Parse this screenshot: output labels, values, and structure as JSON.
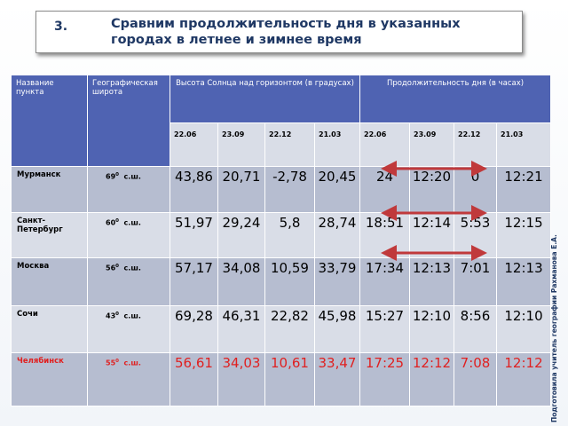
{
  "title": {
    "number": "3.",
    "text": "Сравним продолжительность дня в указанных городах в летнее и зимнее время"
  },
  "credit": "Подготовила учитель географии Рахманова Е.А.",
  "headers": {
    "city": "Название пункта",
    "latitude": "Географическая широта",
    "sun_height": "Высота Солнца над горизонтом (в градусах)",
    "day_length": "Продолжительность дня (в часах)"
  },
  "sun_dates": [
    "22.06",
    "23.09",
    "22.12",
    "21.03"
  ],
  "day_dates": [
    "22.06",
    "23.09",
    "22.12",
    "21.03"
  ],
  "rows": [
    {
      "city": "Мурманск",
      "lat": "69",
      "lat_suffix": "с.ш.",
      "sun": [
        "43,86",
        "20,71",
        "-2,78",
        "20,45"
      ],
      "day": [
        "24",
        "12:20",
        "0",
        "12:21"
      ]
    },
    {
      "city": "Санкт-Петербург",
      "lat": "60",
      "lat_suffix": "с.ш.",
      "sun": [
        "51,97",
        "29,24",
        "5,8",
        "28,74"
      ],
      "day": [
        "18:51",
        "12:14",
        "5:53",
        "12:15"
      ]
    },
    {
      "city": "Москва",
      "lat": "56",
      "lat_suffix": "с.ш.",
      "sun": [
        "57,17",
        "34,08",
        "10,59",
        "33,79"
      ],
      "day": [
        "17:34",
        "12:13",
        "7:01",
        "12:13"
      ]
    },
    {
      "city": "Сочи",
      "lat": "43",
      "lat_suffix": "с.ш.",
      "sun": [
        "69,28",
        "46,31",
        "22,82",
        "45,98"
      ],
      "day": [
        "15:27",
        "12:10",
        "8:56",
        "12:10"
      ]
    },
    {
      "city": "Челябинск",
      "lat": "55",
      "lat_suffix": "с.ш.",
      "sun": [
        "56,61",
        "34,03",
        "10,61",
        "33,47"
      ],
      "day": [
        "17:25",
        "12:12",
        "7:08",
        "12:12"
      ]
    }
  ],
  "degree_sign": "0",
  "colors": {
    "header": "#4f63b2",
    "row_light": "#d9dde7",
    "row_dark": "#b6bdd0",
    "highlight": "#e02020",
    "arrow": "#c0393b",
    "title": "#1f3864"
  }
}
